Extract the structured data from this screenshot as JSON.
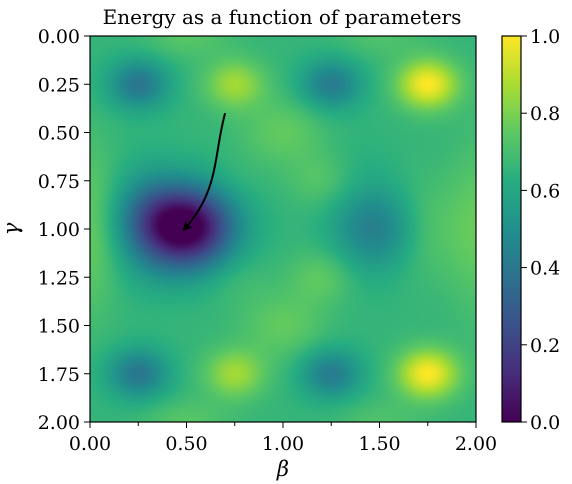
{
  "chart_data": {
    "type": "heatmap",
    "title": "Energy as a function of parameters",
    "xlabel": "β",
    "ylabel": "γ",
    "xlim": [
      0,
      2
    ],
    "ylim": [
      2,
      0
    ],
    "y_inverted": true,
    "x_ticks": [
      {
        "value": 0.0,
        "label": "0.00"
      },
      {
        "value": 0.5,
        "label": "0.50"
      },
      {
        "value": 1.0,
        "label": "1.00"
      },
      {
        "value": 1.5,
        "label": "1.50"
      },
      {
        "value": 2.0,
        "label": "2.00"
      }
    ],
    "x_minor_ticks": [
      0.25,
      0.75,
      1.25,
      1.75
    ],
    "y_ticks": [
      {
        "value": 0.0,
        "label": "0.00"
      },
      {
        "value": 0.25,
        "label": "0.25"
      },
      {
        "value": 0.5,
        "label": "0.50"
      },
      {
        "value": 0.75,
        "label": "0.75"
      },
      {
        "value": 1.0,
        "label": "1.00"
      },
      {
        "value": 1.25,
        "label": "1.25"
      },
      {
        "value": 1.5,
        "label": "1.50"
      },
      {
        "value": 1.75,
        "label": "1.75"
      },
      {
        "value": 2.0,
        "label": "2.00"
      }
    ],
    "colormap": "viridis",
    "color_range": [
      0.0,
      1.0
    ],
    "colorbar_ticks": [
      {
        "value": 0.0,
        "label": "0.0"
      },
      {
        "value": 0.2,
        "label": "0.2"
      },
      {
        "value": 0.4,
        "label": "0.4"
      },
      {
        "value": 0.6,
        "label": "0.6"
      },
      {
        "value": 0.8,
        "label": "0.8"
      },
      {
        "value": 1.0,
        "label": "1.0"
      }
    ],
    "field": {
      "baseline": 0.66,
      "features": [
        {
          "x": 0.5,
          "y": 1.0,
          "amp": -0.66,
          "sx": 0.17,
          "sy": 0.15
        },
        {
          "x": 0.3,
          "y": 0.95,
          "amp": -0.12,
          "sx": 0.12,
          "sy": 0.2
        },
        {
          "x": 0.4,
          "y": 0.92,
          "amp": -0.1,
          "sx": 0.2,
          "sy": 0.12
        },
        {
          "x": 0.25,
          "y": 0.25,
          "amp": -0.26,
          "sx": 0.11,
          "sy": 0.09
        },
        {
          "x": 0.25,
          "y": 1.75,
          "amp": -0.26,
          "sx": 0.11,
          "sy": 0.09
        },
        {
          "x": 1.25,
          "y": 0.25,
          "amp": -0.24,
          "sx": 0.11,
          "sy": 0.09
        },
        {
          "x": 1.25,
          "y": 1.75,
          "amp": -0.24,
          "sx": 0.11,
          "sy": 0.09
        },
        {
          "x": 1.5,
          "y": 1.0,
          "amp": -0.18,
          "sx": 0.15,
          "sy": 0.14
        },
        {
          "x": 1.4,
          "y": 0.95,
          "amp": -0.06,
          "sx": 0.14,
          "sy": 0.25
        },
        {
          "x": 0.75,
          "y": 0.25,
          "amp": 0.2,
          "sx": 0.11,
          "sy": 0.09
        },
        {
          "x": 0.75,
          "y": 1.75,
          "amp": 0.2,
          "sx": 0.11,
          "sy": 0.09
        },
        {
          "x": 1.75,
          "y": 0.25,
          "amp": 0.34,
          "sx": 0.11,
          "sy": 0.09
        },
        {
          "x": 1.75,
          "y": 1.75,
          "amp": 0.34,
          "sx": 0.11,
          "sy": 0.09
        },
        {
          "x": 0.0,
          "y": 1.0,
          "amp": 0.12,
          "sx": 0.1,
          "sy": 0.3
        },
        {
          "x": 1.0,
          "y": 0.5,
          "amp": 0.1,
          "sx": 0.15,
          "sy": 0.12
        },
        {
          "x": 1.0,
          "y": 1.5,
          "amp": 0.1,
          "sx": 0.15,
          "sy": 0.12
        },
        {
          "x": 1.2,
          "y": 1.25,
          "amp": 0.1,
          "sx": 0.12,
          "sy": 0.1
        },
        {
          "x": 1.2,
          "y": 0.75,
          "amp": 0.08,
          "sx": 0.12,
          "sy": 0.1
        },
        {
          "x": 2.0,
          "y": 1.0,
          "amp": 0.1,
          "sx": 0.1,
          "sy": 0.3
        },
        {
          "x": 1.75,
          "y": 1.0,
          "amp": 0.08,
          "sx": 0.12,
          "sy": 0.18
        },
        {
          "x": 0.5,
          "y": 0.0,
          "amp": 0.08,
          "sx": 0.15,
          "sy": 0.08
        },
        {
          "x": 0.5,
          "y": 2.0,
          "amp": 0.08,
          "sx": 0.15,
          "sy": 0.08
        },
        {
          "x": 1.5,
          "y": 0.0,
          "amp": 0.06,
          "sx": 0.15,
          "sy": 0.08
        },
        {
          "x": 1.5,
          "y": 2.0,
          "amp": 0.06,
          "sx": 0.15,
          "sy": 0.08
        },
        {
          "x": 0.75,
          "y": 1.25,
          "amp": 0.04,
          "sx": 0.12,
          "sy": 0.1
        },
        {
          "x": 0.75,
          "y": 0.75,
          "amp": 0.02,
          "sx": 0.1,
          "sy": 0.08
        }
      ]
    },
    "annotation": {
      "type": "arrow",
      "path": [
        [
          0.7,
          0.4
        ],
        [
          0.64,
          0.62
        ],
        [
          0.67,
          0.8
        ],
        [
          0.49,
          1.0
        ]
      ],
      "color": "#000000"
    }
  }
}
